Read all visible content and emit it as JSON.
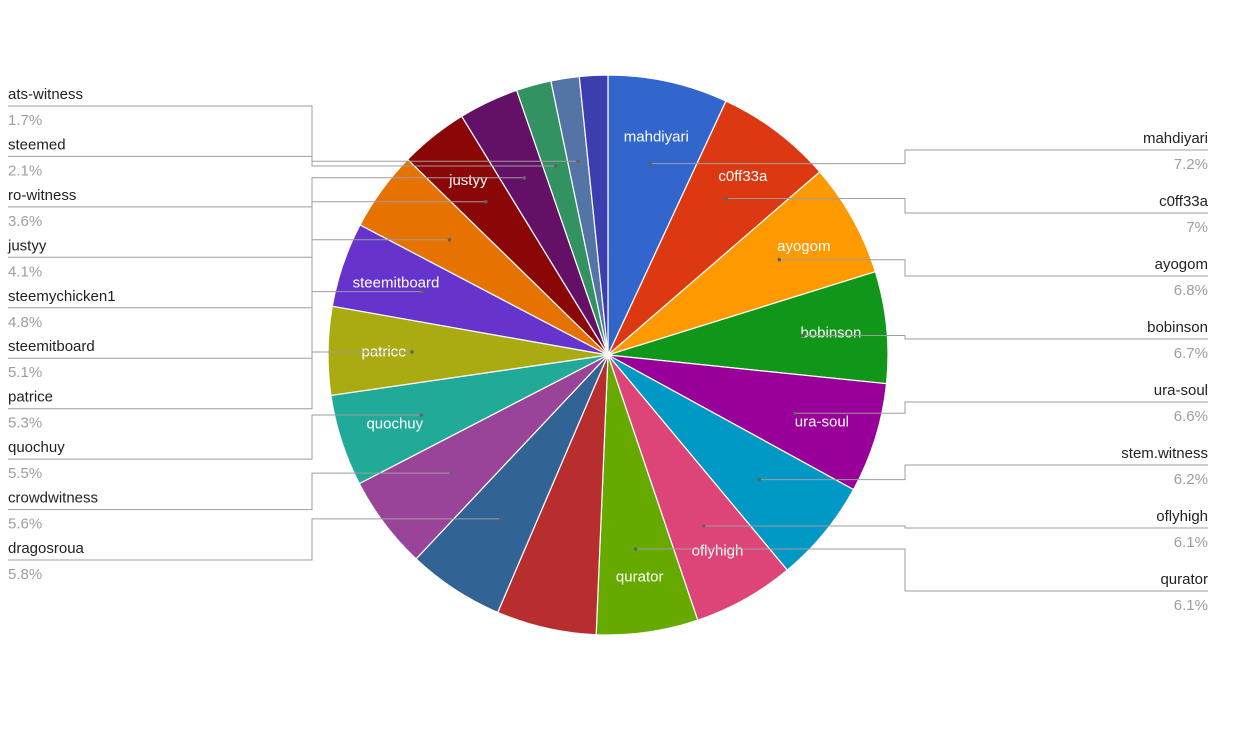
{
  "chart_data": {
    "type": "pie",
    "title": "",
    "slices": [
      {
        "label": "mahdiyari",
        "value": 7.2,
        "pct_label": "7.2%",
        "color": "#3366cc"
      },
      {
        "label": "c0ff33a",
        "value": 7.0,
        "pct_label": "7%",
        "color": "#dc3912"
      },
      {
        "label": "ayogom",
        "value": 6.8,
        "pct_label": "6.8%",
        "color": "#ff9900"
      },
      {
        "label": "bobinson",
        "value": 6.7,
        "pct_label": "6.7%",
        "color": "#109618"
      },
      {
        "label": "ura-soul",
        "value": 6.6,
        "pct_label": "6.6%",
        "color": "#990099"
      },
      {
        "label": "stem.witness",
        "value": 6.2,
        "pct_label": "6.2%",
        "color": "#0099c6"
      },
      {
        "label": "oflyhigh",
        "value": 6.1,
        "pct_label": "6.1%",
        "color": "#dd4477"
      },
      {
        "label": "qurator",
        "value": 6.1,
        "pct_label": "6.1%",
        "color": "#66aa00"
      },
      {
        "label": "",
        "value": 6.0,
        "pct_label": "",
        "color": "#b82e2e"
      },
      {
        "label": "dragosroua",
        "value": 5.8,
        "pct_label": "5.8%",
        "color": "#316395"
      },
      {
        "label": "crowdwitness",
        "value": 5.6,
        "pct_label": "5.6%",
        "color": "#994499"
      },
      {
        "label": "quochuy",
        "value": 5.5,
        "pct_label": "5.5%",
        "color": "#22aa99"
      },
      {
        "label": "patrice",
        "value": 5.3,
        "pct_label": "5.3%",
        "color": "#aaaa11"
      },
      {
        "label": "steemitboard",
        "value": 5.1,
        "pct_label": "5.1%",
        "color": "#6633cc"
      },
      {
        "label": "steemychicken1",
        "value": 4.8,
        "pct_label": "4.8%",
        "color": "#e67300"
      },
      {
        "label": "justyy",
        "value": 4.1,
        "pct_label": "4.1%",
        "color": "#8b0707"
      },
      {
        "label": "ro-witness",
        "value": 3.6,
        "pct_label": "3.6%",
        "color": "#651067"
      },
      {
        "label": "steemed",
        "value": 2.1,
        "pct_label": "2.1%",
        "color": "#329262"
      },
      {
        "label": "ats-witness",
        "value": 1.7,
        "pct_label": "1.7%",
        "color": "#5574a6"
      },
      {
        "label": "",
        "value": 1.7,
        "pct_label": "",
        "color": "#3b3eac"
      }
    ],
    "inside_labels": [
      {
        "text": "mahdiyari",
        "slice": 0
      },
      {
        "text": "c0ff33a",
        "slice": 1
      },
      {
        "text": "ayogom",
        "slice": 2
      },
      {
        "text": "bobinson",
        "slice": 3
      },
      {
        "text": "ura-soul",
        "slice": 4
      },
      {
        "text": "oflyhigh",
        "slice": 6
      },
      {
        "text": "qurator",
        "slice": 7
      },
      {
        "text": "quochuy",
        "slice": 11
      },
      {
        "text": "patrice",
        "slice": 12
      },
      {
        "text": "steemitboard",
        "slice": 13
      },
      {
        "text": "justyy",
        "slice": 15
      }
    ],
    "legend_left": [
      {
        "name": "ats-witness",
        "pct": "1.7%",
        "slice": 18
      },
      {
        "name": "steemed",
        "pct": "2.1%",
        "slice": 17
      },
      {
        "name": "ro-witness",
        "pct": "3.6%",
        "slice": 16
      },
      {
        "name": "justyy",
        "pct": "4.1%",
        "slice": 15
      },
      {
        "name": "steemychicken1",
        "pct": "4.8%",
        "slice": 14
      },
      {
        "name": "steemitboard",
        "pct": "5.1%",
        "slice": 13
      },
      {
        "name": "patrice",
        "pct": "5.3%",
        "slice": 12
      },
      {
        "name": "quochuy",
        "pct": "5.5%",
        "slice": 11
      },
      {
        "name": "crowdwitness",
        "pct": "5.6%",
        "slice": 10
      },
      {
        "name": "dragosroua",
        "pct": "5.8%",
        "slice": 9
      }
    ],
    "legend_right": [
      {
        "name": "mahdiyari",
        "pct": "7.2%",
        "slice": 0
      },
      {
        "name": "c0ff33a",
        "pct": "7%",
        "slice": 1
      },
      {
        "name": "ayogom",
        "pct": "6.8%",
        "slice": 2
      },
      {
        "name": "bobinson",
        "pct": "6.7%",
        "slice": 3
      },
      {
        "name": "ura-soul",
        "pct": "6.6%",
        "slice": 4
      },
      {
        "name": "stem.witness",
        "pct": "6.2%",
        "slice": 5
      },
      {
        "name": "oflyhigh",
        "pct": "6.1%",
        "slice": 6
      },
      {
        "name": "qurator",
        "pct": "6.1%",
        "slice": 7
      }
    ],
    "legend_placement": "labeled"
  }
}
